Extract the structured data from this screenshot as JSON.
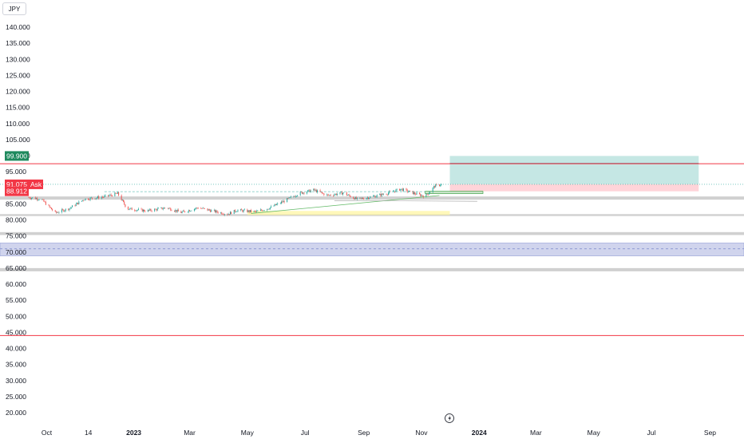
{
  "currency_label": "JPY",
  "ask_label": "Ask",
  "colors": {
    "bull": "#26a69a",
    "bear": "#ef5350",
    "resistance": "#f23645",
    "target_zone": "#b2dfdb",
    "stop_zone": "#ffcdd2",
    "blue_zone": "#c5cae9",
    "gray_band": "#c8c8c8",
    "yellow_zone": "#fff59d"
  },
  "chart_data": {
    "type": "candlestick",
    "y_ticks": [
      "140.000",
      "135.000",
      "130.000",
      "125.000",
      "120.000",
      "115.000",
      "110.000",
      "105.000",
      "100.000",
      "95.000",
      "90.000",
      "85.000",
      "80.000",
      "75.000",
      "70.000",
      "65.000",
      "60.000",
      "55.000",
      "50.000",
      "45.000",
      "40.000",
      "35.000",
      "30.000",
      "25.000",
      "20.000"
    ],
    "y_tick_values": [
      140,
      135,
      130,
      125,
      120,
      115,
      110,
      105,
      100,
      95,
      90,
      85,
      80,
      75,
      70,
      65,
      60,
      55,
      50,
      45,
      40,
      35,
      30,
      25,
      20
    ],
    "ylim": [
      18,
      143
    ],
    "x_ticks": [
      {
        "label": "Oct",
        "date": "2022-10-01"
      },
      {
        "label": "14",
        "date": "2022-11-14"
      },
      {
        "label": "2023",
        "date": "2023-01-01"
      },
      {
        "label": "Mar",
        "date": "2023-03-01"
      },
      {
        "label": "May",
        "date": "2023-05-01"
      },
      {
        "label": "Jul",
        "date": "2023-07-01"
      },
      {
        "label": "Sep",
        "date": "2023-09-01"
      },
      {
        "label": "Nov",
        "date": "2023-11-01"
      },
      {
        "label": "2024",
        "date": "2024-01-01"
      },
      {
        "label": "Mar",
        "date": "2024-03-01"
      },
      {
        "label": "May",
        "date": "2024-05-01"
      },
      {
        "label": "Jul",
        "date": "2024-07-01"
      },
      {
        "label": "Sep",
        "date": "2024-09-01"
      }
    ],
    "x_range": [
      "2022-09-12",
      "2024-09-20"
    ],
    "price_path": [
      [
        "2022-09-12",
        87.0
      ],
      [
        "2022-09-25",
        86.5
      ],
      [
        "2022-10-10",
        82.2
      ],
      [
        "2022-10-25",
        83.6
      ],
      [
        "2022-11-10",
        86.5
      ],
      [
        "2022-12-01",
        87.2
      ],
      [
        "2022-12-15",
        88.2
      ],
      [
        "2022-12-25",
        83.5
      ],
      [
        "2023-01-15",
        82.8
      ],
      [
        "2023-02-05",
        83.8
      ],
      [
        "2023-02-20",
        82.3
      ],
      [
        "2023-03-10",
        83.8
      ],
      [
        "2023-03-25",
        82.8
      ],
      [
        "2023-04-10",
        81.8
      ],
      [
        "2023-04-20",
        83.0
      ],
      [
        "2023-05-10",
        82.5
      ],
      [
        "2023-05-25",
        83.8
      ],
      [
        "2023-06-10",
        86.0
      ],
      [
        "2023-06-25",
        88.3
      ],
      [
        "2023-07-10",
        89.3
      ],
      [
        "2023-07-25",
        87.6
      ],
      [
        "2023-08-10",
        88.4
      ],
      [
        "2023-08-25",
        86.4
      ],
      [
        "2023-09-10",
        87.2
      ],
      [
        "2023-09-25",
        88.2
      ],
      [
        "2023-10-10",
        89.6
      ],
      [
        "2023-10-25",
        88.2
      ],
      [
        "2023-11-05",
        87.3
      ],
      [
        "2023-11-15",
        90.5
      ],
      [
        "2023-11-22",
        91.1
      ]
    ],
    "levels": {
      "resistance": 97.5,
      "ask": 91.075,
      "last_close": 88.912,
      "target_badge": 99.9,
      "support_red": 44.0
    },
    "badges": {
      "target": "99.900",
      "ask": "91.075",
      "last": "88.912"
    },
    "zones": {
      "target": {
        "from": "2023-12-01",
        "to": "2024-08-20",
        "low": 91.1,
        "high": 99.9,
        "mid": 97.6
      },
      "stop": {
        "from": "2023-12-01",
        "to": "2024-08-20",
        "low": 88.9,
        "high": 91.1
      },
      "blue": {
        "low": 68.8,
        "high": 72.8,
        "mid": 71.0
      },
      "gray_bands": [
        [
          86.3,
          87.3
        ],
        [
          81.2,
          81.8
        ],
        [
          75.3,
          76.2
        ],
        [
          64.0,
          65.0
        ]
      ],
      "yellow": {
        "from": "2023-05-01",
        "to": "2023-12-01",
        "low": 81.5,
        "high": 82.8
      }
    }
  }
}
